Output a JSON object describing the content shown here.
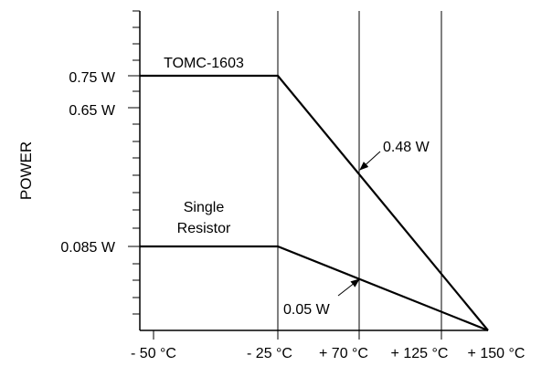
{
  "chart_data": {
    "type": "line",
    "ylabel": "POWER",
    "x_ticks": [
      "- 50 °C",
      "- 25 °C",
      "+ 70 °C",
      "+ 125 °C",
      "+ 150 °C"
    ],
    "x_tick_values": [
      -50,
      -25,
      70,
      125,
      150
    ],
    "y_tick_labels": [
      "0.75 W",
      "0.65 W",
      "0.085 W"
    ],
    "y_tick_values": [
      0.75,
      0.65,
      0.085
    ],
    "grid_vertical": true,
    "series": [
      {
        "name": "TOMC-1603",
        "points": [
          [
            -50,
            0.75
          ],
          [
            -25,
            0.75
          ],
          [
            150,
            0
          ]
        ]
      },
      {
        "name": "Single Resistor",
        "name_lines": [
          "Single",
          "Resistor"
        ],
        "points": [
          [
            -50,
            0.085
          ],
          [
            -25,
            0.085
          ],
          [
            150,
            0
          ]
        ]
      }
    ],
    "annotations": [
      {
        "text": "0.48 W",
        "x": 70,
        "y": 0.48
      },
      {
        "text": "0.05 W",
        "x": 70,
        "y": 0.05
      }
    ]
  }
}
